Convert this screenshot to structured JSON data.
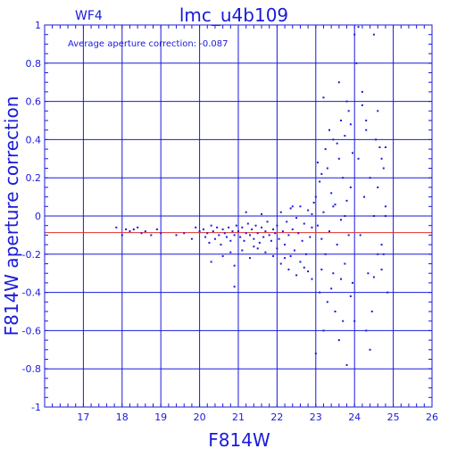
{
  "chart_data": {
    "type": "scatter",
    "panel_label": "WF4",
    "title": "lmc_u4b109",
    "annotation": "Average aperture correction:  -0.087",
    "xlabel": "F814W",
    "ylabel": "F814W aperture correction",
    "xlim": [
      16,
      26
    ],
    "ylim": [
      -1,
      1
    ],
    "x_ticks": [
      "17",
      "18",
      "19",
      "20",
      "21",
      "22",
      "23",
      "24",
      "25",
      "26"
    ],
    "y_ticks": [
      "-1",
      "-0.8",
      "-0.6",
      "-0.4",
      "-0.2",
      "0",
      "0.2",
      "0.4",
      "0.6",
      "0.8",
      "1"
    ],
    "grid": true,
    "reference_line": {
      "y": -0.087,
      "label": "average"
    },
    "colors": {
      "axes": "#1a1adb",
      "points": "#1a1adb",
      "reference_line": "#e03030",
      "text": "#1a1adb"
    },
    "series": [
      {
        "points": [
          [
            17.85,
            -0.06
          ],
          [
            18.0,
            -0.1
          ],
          [
            18.1,
            -0.07
          ],
          [
            18.2,
            -0.08
          ],
          [
            18.3,
            -0.07
          ],
          [
            18.4,
            -0.06
          ],
          [
            18.5,
            -0.09
          ],
          [
            18.6,
            -0.08
          ],
          [
            18.75,
            -0.1
          ],
          [
            18.9,
            -0.07
          ],
          [
            19.0,
            -0.09
          ],
          [
            19.4,
            -0.1
          ],
          [
            19.6,
            -0.09
          ],
          [
            19.8,
            -0.12
          ],
          [
            19.9,
            -0.06
          ],
          [
            20.0,
            -0.08
          ],
          [
            20.1,
            -0.07
          ],
          [
            20.15,
            -0.11
          ],
          [
            20.2,
            -0.09
          ],
          [
            20.25,
            -0.14
          ],
          [
            20.3,
            -0.05
          ],
          [
            20.35,
            -0.08
          ],
          [
            20.4,
            -0.12
          ],
          [
            20.45,
            -0.06
          ],
          [
            20.5,
            -0.1
          ],
          [
            20.55,
            -0.15
          ],
          [
            20.6,
            -0.07
          ],
          [
            20.65,
            -0.09
          ],
          [
            20.7,
            -0.11
          ],
          [
            20.75,
            -0.06
          ],
          [
            20.8,
            -0.13
          ],
          [
            20.85,
            -0.08
          ],
          [
            20.9,
            -0.1
          ],
          [
            20.95,
            -0.05
          ],
          [
            20.3,
            -0.24
          ],
          [
            20.6,
            -0.21
          ],
          [
            20.8,
            -0.19
          ],
          [
            20.9,
            -0.26
          ],
          [
            21.0,
            -0.08
          ],
          [
            21.05,
            -0.11
          ],
          [
            21.1,
            -0.06
          ],
          [
            21.15,
            -0.13
          ],
          [
            21.2,
            -0.09
          ],
          [
            21.25,
            -0.04
          ],
          [
            21.3,
            -0.1
          ],
          [
            21.35,
            -0.07
          ],
          [
            21.4,
            -0.12
          ],
          [
            21.45,
            -0.05
          ],
          [
            21.5,
            -0.09
          ],
          [
            21.55,
            -0.14
          ],
          [
            21.6,
            -0.06
          ],
          [
            21.65,
            -0.11
          ],
          [
            21.7,
            -0.08
          ],
          [
            21.75,
            -0.03
          ],
          [
            21.8,
            -0.1
          ],
          [
            21.85,
            -0.13
          ],
          [
            21.9,
            -0.07
          ],
          [
            21.95,
            -0.09
          ],
          [
            21.1,
            -0.18
          ],
          [
            21.3,
            -0.22
          ],
          [
            21.5,
            -0.17
          ],
          [
            21.7,
            -0.19
          ],
          [
            21.9,
            -0.21
          ],
          [
            21.2,
            0.02
          ],
          [
            21.6,
            0.01
          ],
          [
            20.9,
            -0.37
          ],
          [
            21.4,
            -0.16
          ],
          [
            22.0,
            -0.05
          ],
          [
            22.05,
            -0.12
          ],
          [
            22.1,
            0.02
          ],
          [
            22.15,
            -0.08
          ],
          [
            22.2,
            -0.15
          ],
          [
            22.25,
            -0.03
          ],
          [
            22.3,
            -0.1
          ],
          [
            22.35,
            0.04
          ],
          [
            22.4,
            -0.07
          ],
          [
            22.45,
            -0.18
          ],
          [
            22.5,
            -0.01
          ],
          [
            22.55,
            -0.09
          ],
          [
            22.6,
            0.05
          ],
          [
            22.65,
            -0.13
          ],
          [
            22.7,
            -0.04
          ],
          [
            22.75,
            -0.2
          ],
          [
            22.8,
            0.03
          ],
          [
            22.85,
            -0.11
          ],
          [
            22.9,
            -0.06
          ],
          [
            22.95,
            0.07
          ],
          [
            22.1,
            -0.25
          ],
          [
            22.3,
            -0.28
          ],
          [
            22.5,
            -0.31
          ],
          [
            22.7,
            -0.27
          ],
          [
            22.9,
            -0.33
          ],
          [
            22.2,
            -0.22
          ],
          [
            22.6,
            -0.24
          ],
          [
            22.8,
            -0.29
          ],
          [
            22.4,
            0.05
          ],
          [
            22.9,
            0.01
          ],
          [
            22.0,
            -0.17
          ],
          [
            22.35,
            -0.21
          ],
          [
            23.0,
            0.1
          ],
          [
            23.05,
            -0.05
          ],
          [
            23.1,
            0.18
          ],
          [
            23.15,
            -0.12
          ],
          [
            23.2,
            0.02
          ],
          [
            23.25,
            -0.2
          ],
          [
            23.3,
            0.25
          ],
          [
            23.35,
            -0.08
          ],
          [
            23.4,
            0.12
          ],
          [
            23.45,
            -0.3
          ],
          [
            23.5,
            0.06
          ],
          [
            23.55,
            -0.15
          ],
          [
            23.6,
            0.3
          ],
          [
            23.65,
            -0.02
          ],
          [
            23.7,
            0.2
          ],
          [
            23.75,
            -0.25
          ],
          [
            23.8,
            0.08
          ],
          [
            23.85,
            -0.1
          ],
          [
            23.9,
            0.15
          ],
          [
            23.95,
            -0.35
          ],
          [
            23.05,
            0.28
          ],
          [
            23.15,
            0.22
          ],
          [
            23.25,
            0.35
          ],
          [
            23.35,
            0.45
          ],
          [
            23.45,
            0.4
          ],
          [
            23.55,
            0.38
          ],
          [
            23.65,
            0.5
          ],
          [
            23.75,
            0.42
          ],
          [
            23.85,
            0.55
          ],
          [
            23.95,
            0.33
          ],
          [
            23.1,
            -0.4
          ],
          [
            23.3,
            -0.45
          ],
          [
            23.5,
            -0.5
          ],
          [
            23.7,
            -0.55
          ],
          [
            23.9,
            -0.42
          ],
          [
            23.2,
            -0.6
          ],
          [
            23.6,
            -0.65
          ],
          [
            23.8,
            -0.78
          ],
          [
            23.4,
            -0.38
          ],
          [
            23.0,
            -0.72
          ],
          [
            23.2,
            0.62
          ],
          [
            23.6,
            0.7
          ],
          [
            23.8,
            0.6
          ],
          [
            23.9,
            0.48
          ],
          [
            23.45,
            0.05
          ],
          [
            23.75,
            0.0
          ],
          [
            23.15,
            -0.28
          ],
          [
            23.65,
            -0.33
          ],
          [
            24.0,
            0.95
          ],
          [
            24.05,
            0.8
          ],
          [
            24.1,
            0.3
          ],
          [
            24.15,
            -0.1
          ],
          [
            24.2,
            0.65
          ],
          [
            24.25,
            0.1
          ],
          [
            24.3,
            0.5
          ],
          [
            24.35,
            -0.3
          ],
          [
            24.4,
            0.2
          ],
          [
            24.45,
            -0.5
          ],
          [
            24.5,
            0.0
          ],
          [
            24.55,
            0.4
          ],
          [
            24.6,
            -0.2
          ],
          [
            24.65,
            0.36
          ],
          [
            24.7,
            -0.15
          ],
          [
            24.75,
            0.25
          ],
          [
            24.8,
            0.05
          ],
          [
            24.85,
            -0.4
          ],
          [
            24.1,
            0.99
          ],
          [
            24.5,
            0.95
          ],
          [
            24.2,
            0.58
          ],
          [
            24.6,
            0.55
          ],
          [
            24.7,
            0.3
          ],
          [
            24.8,
            0.36
          ],
          [
            24.3,
            -0.6
          ],
          [
            24.4,
            -0.7
          ],
          [
            24.5,
            -0.32
          ],
          [
            24.7,
            -0.28
          ],
          [
            24.8,
            0.0
          ],
          [
            24.6,
            0.15
          ],
          [
            24.0,
            -0.55
          ],
          [
            24.3,
            0.45
          ],
          [
            24.75,
            -0.2
          ]
        ]
      }
    ]
  }
}
